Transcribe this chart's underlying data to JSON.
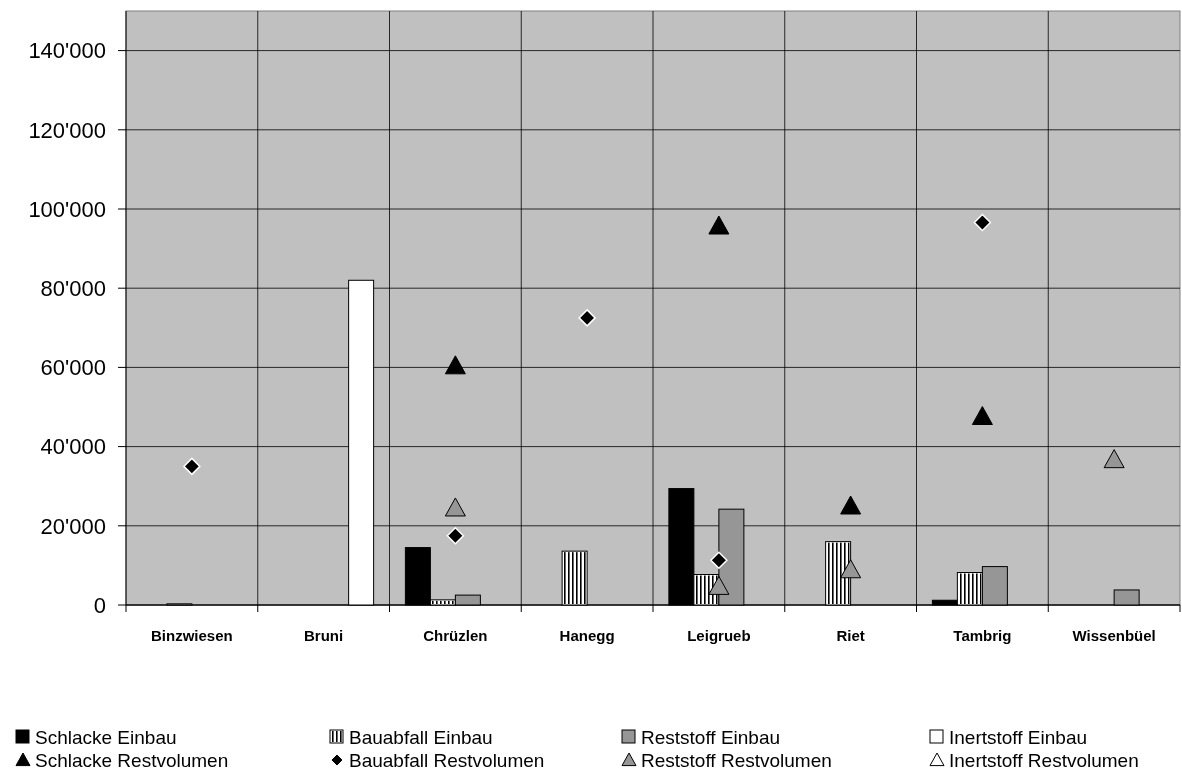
{
  "chart_data": {
    "type": "bar",
    "categories": [
      "Binzwiesen",
      "Bruni",
      "Chrüzlen",
      "Hanegg",
      "Leigrueb",
      "Riet",
      "Tambrig",
      "Wissenbüel"
    ],
    "series": [
      {
        "name": "Schlacke Einbau",
        "color": "#000000",
        "values": [
          null,
          null,
          14500,
          null,
          29400,
          null,
          1200,
          null
        ]
      },
      {
        "name": "Bauabfall Einbau",
        "color": "#ffffff",
        "values": [
          300,
          null,
          1300,
          13600,
          7700,
          16000,
          8200,
          null
        ]
      },
      {
        "name": "Reststoff Einbau",
        "color": "#969696",
        "values": [
          null,
          null,
          2500,
          null,
          24200,
          null,
          9700,
          3800
        ]
      },
      {
        "name": "Inertstoff Einbau",
        "color": "#ffffff",
        "values": [
          null,
          82000,
          null,
          null,
          null,
          null,
          null,
          null
        ]
      },
      {
        "name": "Schlacke Restvolumen",
        "type": "scatter",
        "marker": "triangle",
        "color": "#000000",
        "values": [
          null,
          null,
          60400,
          null,
          95700,
          25000,
          47600,
          null
        ]
      },
      {
        "name": "Bauabfall Restvolumen",
        "type": "scatter",
        "marker": "diamond",
        "color": "#000000",
        "values": [
          35000,
          null,
          17500,
          72500,
          11300,
          null,
          96600,
          null
        ]
      },
      {
        "name": "Reststoff Restvolumen",
        "type": "scatter",
        "marker": "triangle",
        "color": "#969696",
        "values": [
          null,
          null,
          24500,
          null,
          4700,
          8900,
          null,
          36700
        ]
      },
      {
        "name": "Inertstoff Restvolumen",
        "type": "scatter",
        "marker": "triangle",
        "color": "#ffffff",
        "values": [
          null,
          null,
          null,
          null,
          null,
          null,
          null,
          null
        ]
      }
    ],
    "ylim": [
      0,
      150000
    ],
    "yticks": [
      0,
      {
        "value": 20000,
        "label": "20'000"
      },
      {
        "value": 40000,
        "label": "40'000"
      },
      {
        "value": 60000,
        "label": "60'000"
      },
      {
        "value": 80000,
        "label": "80'000"
      },
      {
        "value": 100000,
        "label": "100'000"
      },
      {
        "value": 120000,
        "label": "120'000"
      },
      {
        "value": 140000,
        "label": "140'000"
      }
    ],
    "grid": true,
    "legend": "bottom"
  }
}
